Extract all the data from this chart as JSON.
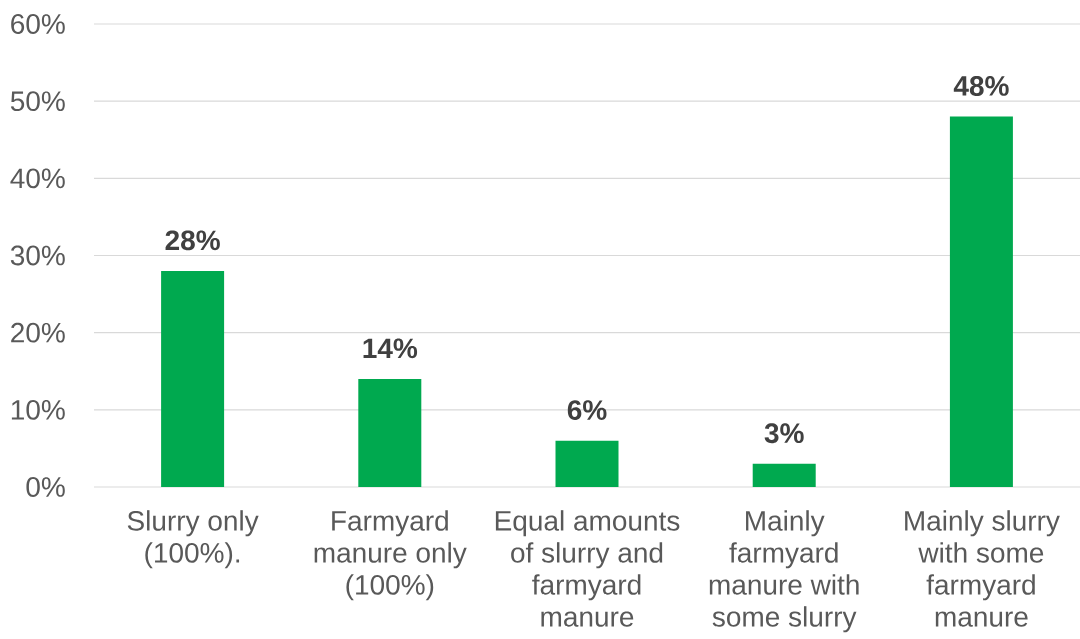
{
  "chart_data": {
    "type": "bar",
    "categories": [
      "Slurry only (100%).",
      "Farmyard manure only (100%)",
      "Equal amounts of slurry and farmyard manure",
      "Mainly farmyard manure with some slurry",
      "Mainly slurry with some farmyard manure"
    ],
    "values": [
      28,
      14,
      6,
      3,
      48
    ],
    "color": "#00a94f",
    "value_labels": [
      "28%",
      "14%",
      "6%",
      "3%",
      "48%"
    ],
    "ylim": [
      0,
      60
    ],
    "yticks": [
      {
        "value": 0,
        "label": "0%"
      },
      {
        "value": 10,
        "label": "10%"
      },
      {
        "value": 20,
        "label": "20%"
      },
      {
        "value": 30,
        "label": "30%"
      },
      {
        "value": 40,
        "label": "40%"
      },
      {
        "value": 50,
        "label": "50%"
      },
      {
        "value": 60,
        "label": "60%"
      }
    ],
    "grid": "y"
  }
}
